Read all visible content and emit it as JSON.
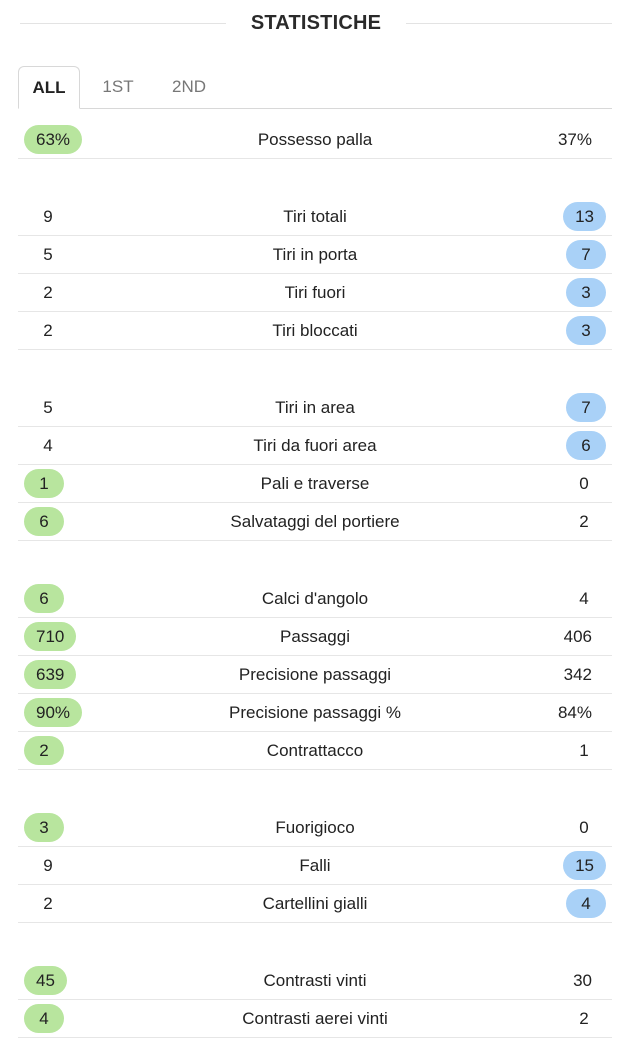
{
  "header": {
    "title": "STATISTICHE"
  },
  "tabs": [
    {
      "label": "ALL",
      "active": true
    },
    {
      "label": "1ST",
      "active": false
    },
    {
      "label": "2ND",
      "active": false
    }
  ],
  "colors": {
    "home_highlight": "#b8e59e",
    "away_highlight": "#a9d1f7"
  },
  "groups": [
    [
      {
        "label": "Possesso palla",
        "home": "63%",
        "away": "37%",
        "winner": "home"
      }
    ],
    [
      {
        "label": "Tiri totali",
        "home": "9",
        "away": "13",
        "winner": "away"
      },
      {
        "label": "Tiri in porta",
        "home": "5",
        "away": "7",
        "winner": "away"
      },
      {
        "label": "Tiri fuori",
        "home": "2",
        "away": "3",
        "winner": "away"
      },
      {
        "label": "Tiri bloccati",
        "home": "2",
        "away": "3",
        "winner": "away"
      }
    ],
    [
      {
        "label": "Tiri in area",
        "home": "5",
        "away": "7",
        "winner": "away"
      },
      {
        "label": "Tiri da fuori area",
        "home": "4",
        "away": "6",
        "winner": "away"
      },
      {
        "label": "Pali e traverse",
        "home": "1",
        "away": "0",
        "winner": "home"
      },
      {
        "label": "Salvataggi del portiere",
        "home": "6",
        "away": "2",
        "winner": "home"
      }
    ],
    [
      {
        "label": "Calci d'angolo",
        "home": "6",
        "away": "4",
        "winner": "home"
      },
      {
        "label": "Passaggi",
        "home": "710",
        "away": "406",
        "winner": "home"
      },
      {
        "label": "Precisione passaggi",
        "home": "639",
        "away": "342",
        "winner": "home"
      },
      {
        "label": "Precisione passaggi %",
        "home": "90%",
        "away": "84%",
        "winner": "home"
      },
      {
        "label": "Contrattacco",
        "home": "2",
        "away": "1",
        "winner": "home"
      }
    ],
    [
      {
        "label": "Fuorigioco",
        "home": "3",
        "away": "0",
        "winner": "home"
      },
      {
        "label": "Falli",
        "home": "9",
        "away": "15",
        "winner": "away"
      },
      {
        "label": "Cartellini gialli",
        "home": "2",
        "away": "4",
        "winner": "away"
      }
    ],
    [
      {
        "label": "Contrasti vinti",
        "home": "45",
        "away": "30",
        "winner": "home"
      },
      {
        "label": "Contrasti aerei vinti",
        "home": "4",
        "away": "2",
        "winner": "home"
      }
    ]
  ]
}
